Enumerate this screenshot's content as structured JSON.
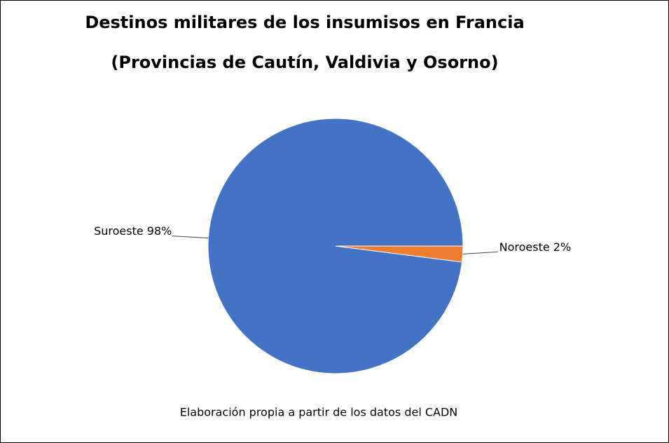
{
  "chart_data": {
    "type": "pie",
    "title": "Destinos militares de los insumisos en Francia",
    "subtitle": "(Provincias de Cautín, Valdivia y Osorno)",
    "caption": "Elaboración propia a partir de los datos del CADN",
    "categories": [
      "Suroeste",
      "Noroeste"
    ],
    "values": [
      98,
      2
    ],
    "value_labels": [
      "Suroeste 98%",
      "Noroeste 2%"
    ],
    "colors": [
      "#4472c4",
      "#ed7d31"
    ]
  }
}
